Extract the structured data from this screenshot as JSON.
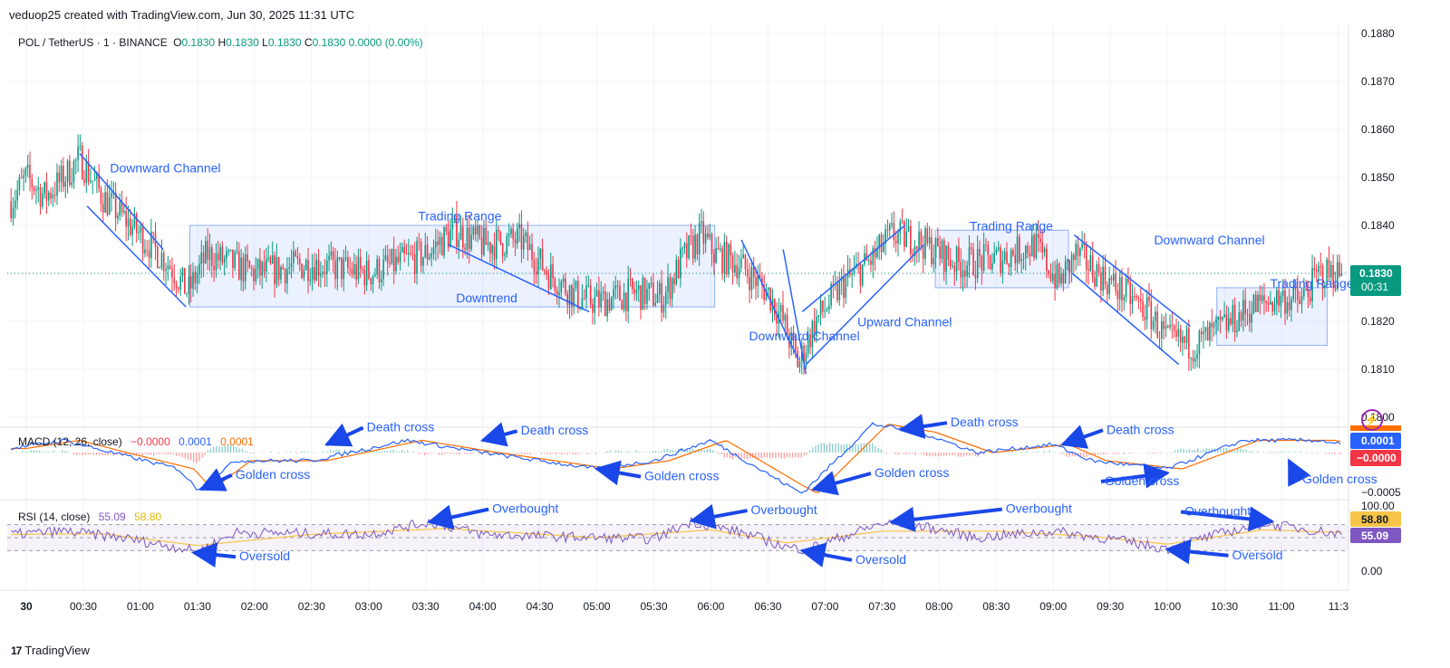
{
  "header": {
    "created_by": "veduop25 created with TradingView.com, Jun 30, 2025 11:31 UTC"
  },
  "legend": {
    "symbol": "POL / TetherUS · 1 · BINANCE",
    "o_label": "O",
    "o": "0.1830",
    "h_label": "H",
    "h": "0.1830",
    "l_label": "L",
    "l": "0.1830",
    "c_label": "C",
    "c": "0.1830",
    "change": "0.0000 (0.00%)"
  },
  "macd_legend": {
    "name": "MACD (12, 26, close)",
    "v1": "−0.0000",
    "v2": "0.0001",
    "v3": "0.0001"
  },
  "rsi_legend": {
    "name": "RSI (14, close)",
    "v1": "55.09",
    "v2": "58.80"
  },
  "brand": "TradingView",
  "colors": {
    "up": "#089981",
    "down": "#f23645",
    "annotation": "#2962ff",
    "macd": "#2962ff",
    "signal": "#ff6d00",
    "rsi": "#7e57c2",
    "rsi_ma": "#f7c548"
  },
  "chart_data": [
    {
      "type": "candlestick",
      "name_pane": "price",
      "x": [
        "30",
        "00:30",
        "01:00",
        "01:30",
        "02:00",
        "02:30",
        "03:00",
        "03:30",
        "04:00",
        "04:30",
        "05:00",
        "05:30",
        "06:00",
        "06:30",
        "07:00",
        "07:30",
        "08:00",
        "08:30",
        "09:00",
        "09:30",
        "10:00",
        "10:30",
        "11:00",
        "11:3"
      ],
      "x_minutes": [
        0,
        30,
        60,
        90,
        120,
        150,
        180,
        210,
        240,
        270,
        300,
        330,
        360,
        390,
        420,
        450,
        480,
        510,
        540,
        570,
        600,
        630,
        660,
        690
      ],
      "y_ticks": [
        "0.1880",
        "0.1870",
        "0.1860",
        "0.1850",
        "0.1840",
        "0.1830",
        "0.1820",
        "0.1810",
        "0.1800"
      ],
      "ylim": [
        0.18,
        0.188
      ],
      "last_price": "0.1830",
      "countdown": "00:31",
      "close_path": [
        [
          -8,
          0.1845
        ],
        [
          0,
          0.185
        ],
        [
          10,
          0.1846
        ],
        [
          20,
          0.185
        ],
        [
          28,
          0.1854
        ],
        [
          40,
          0.1846
        ],
        [
          60,
          0.1838
        ],
        [
          75,
          0.1832
        ],
        [
          85,
          0.1826
        ],
        [
          95,
          0.1834
        ],
        [
          120,
          0.183
        ],
        [
          150,
          0.1832
        ],
        [
          180,
          0.183
        ],
        [
          210,
          0.1834
        ],
        [
          225,
          0.1839
        ],
        [
          240,
          0.1836
        ],
        [
          260,
          0.1837
        ],
        [
          275,
          0.183
        ],
        [
          290,
          0.1825
        ],
        [
          300,
          0.1824
        ],
        [
          320,
          0.1826
        ],
        [
          335,
          0.1825
        ],
        [
          345,
          0.1833
        ],
        [
          355,
          0.1838
        ],
        [
          362,
          0.1834
        ],
        [
          375,
          0.1832
        ],
        [
          390,
          0.1826
        ],
        [
          398,
          0.182
        ],
        [
          406,
          0.1811
        ],
        [
          415,
          0.182
        ],
        [
          430,
          0.1828
        ],
        [
          445,
          0.1833
        ],
        [
          455,
          0.1838
        ],
        [
          468,
          0.1837
        ],
        [
          490,
          0.1832
        ],
        [
          510,
          0.1833
        ],
        [
          530,
          0.1836
        ],
        [
          543,
          0.1828
        ],
        [
          552,
          0.1834
        ],
        [
          570,
          0.1828
        ],
        [
          590,
          0.1822
        ],
        [
          600,
          0.1816
        ],
        [
          615,
          0.1815
        ],
        [
          630,
          0.1819
        ],
        [
          645,
          0.1823
        ],
        [
          660,
          0.1825
        ],
        [
          670,
          0.1824
        ],
        [
          680,
          0.183
        ],
        [
          692,
          0.183
        ]
      ],
      "annotations": [
        {
          "label": "Downward Channel",
          "x": 44,
          "y": 0.1851
        },
        {
          "label": "Trading Range",
          "x": 206,
          "y": 0.1841
        },
        {
          "label": "Downtrend",
          "x": 226,
          "y": 0.1824
        },
        {
          "label": "Downward Channel",
          "x": 380,
          "y": 0.1816
        },
        {
          "label": "Upward Channel",
          "x": 437,
          "y": 0.1819
        },
        {
          "label": "Trading Range",
          "x": 496,
          "y": 0.1839
        },
        {
          "label": "Downward Channel",
          "x": 593,
          "y": 0.1836
        },
        {
          "label": "Trading Range",
          "x": 654,
          "y": 0.1827
        }
      ]
    },
    {
      "type": "line",
      "name_pane": "macd",
      "y_ticks": [
        "0.0001",
        "−0.0005"
      ],
      "series": [
        {
          "name": "MACD",
          "values": [
            [
              -8,
              5e-05
            ],
            [
              20,
              0.00015
            ],
            [
              45,
              0.0
            ],
            [
              80,
              -0.0002
            ],
            [
              90,
              -0.00045
            ],
            [
              110,
              -0.0001
            ],
            [
              150,
              -0.0001
            ],
            [
              200,
              0.00015
            ],
            [
              240,
              0.0
            ],
            [
              300,
              -0.0002
            ],
            [
              330,
              -0.0001
            ],
            [
              360,
              0.00015
            ],
            [
              400,
              -0.0004
            ],
            [
              408,
              -0.0005
            ],
            [
              445,
              0.00035
            ],
            [
              470,
              0.00025
            ],
            [
              500,
              0.0
            ],
            [
              540,
              0.0001
            ],
            [
              560,
              -0.0001
            ],
            [
              600,
              -0.0002
            ],
            [
              640,
              0.00015
            ],
            [
              680,
              0.00015
            ],
            [
              692,
              0.0001
            ]
          ]
        }
      ],
      "last_values": [
        "0.0001",
        "−0.0000"
      ],
      "annotations": [
        {
          "label": "Golden cross",
          "x": 110,
          "y": -0.00032
        },
        {
          "label": "Death cross",
          "x": 179,
          "y": 0.00026
        },
        {
          "label": "Death cross",
          "x": 260,
          "y": 0.00022
        },
        {
          "label": "Golden cross",
          "x": 325,
          "y": -0.00034
        },
        {
          "label": "Golden cross",
          "x": 446,
          "y": -0.0003
        },
        {
          "label": "Death cross",
          "x": 486,
          "y": 0.00032
        },
        {
          "label": "Death cross",
          "x": 568,
          "y": 0.00023
        },
        {
          "label": "Golden cross",
          "x": 567,
          "y": -0.0004
        },
        {
          "label": "Golden cross",
          "x": 671,
          "y": -0.00038
        }
      ]
    },
    {
      "type": "line",
      "name_pane": "rsi",
      "y_ticks": [
        "100.00",
        "0.00"
      ],
      "ylim": [
        0,
        100
      ],
      "bands": [
        30,
        70
      ],
      "series": [
        {
          "name": "RSI",
          "values": [
            [
              -8,
              55
            ],
            [
              20,
              60
            ],
            [
              50,
              50
            ],
            [
              80,
              35
            ],
            [
              90,
              28
            ],
            [
              110,
              58
            ],
            [
              180,
              55
            ],
            [
              212,
              74
            ],
            [
              240,
              55
            ],
            [
              300,
              50
            ],
            [
              330,
              48
            ],
            [
              350,
              75
            ],
            [
              380,
              55
            ],
            [
              400,
              35
            ],
            [
              410,
              32
            ],
            [
              450,
              72
            ],
            [
              470,
              68
            ],
            [
              500,
              50
            ],
            [
              540,
              60
            ],
            [
              570,
              48
            ],
            [
              600,
              33
            ],
            [
              620,
              50
            ],
            [
              650,
              72
            ],
            [
              680,
              60
            ],
            [
              692,
              55
            ]
          ]
        },
        {
          "name": "RSI MA",
          "values": [
            [
              -8,
              55
            ],
            [
              40,
              56
            ],
            [
              90,
              38
            ],
            [
              150,
              55
            ],
            [
              220,
              64
            ],
            [
              300,
              50
            ],
            [
              360,
              62
            ],
            [
              400,
              42
            ],
            [
              450,
              60
            ],
            [
              510,
              60
            ],
            [
              560,
              52
            ],
            [
              600,
              40
            ],
            [
              650,
              62
            ],
            [
              692,
              58
            ]
          ]
        }
      ],
      "last_values": [
        "58.80",
        "55.09"
      ],
      "annotations": [
        {
          "label": "Oversold",
          "x": 112,
          "y": 15
        },
        {
          "label": "Overbought",
          "x": 245,
          "y": 88
        },
        {
          "label": "Overbought",
          "x": 381,
          "y": 86
        },
        {
          "label": "Oversold",
          "x": 436,
          "y": 10
        },
        {
          "label": "Overbought",
          "x": 515,
          "y": 88
        },
        {
          "label": "Overbought",
          "x": 609,
          "y": 84
        },
        {
          "label": "Oversold",
          "x": 634,
          "y": 17
        }
      ]
    }
  ]
}
